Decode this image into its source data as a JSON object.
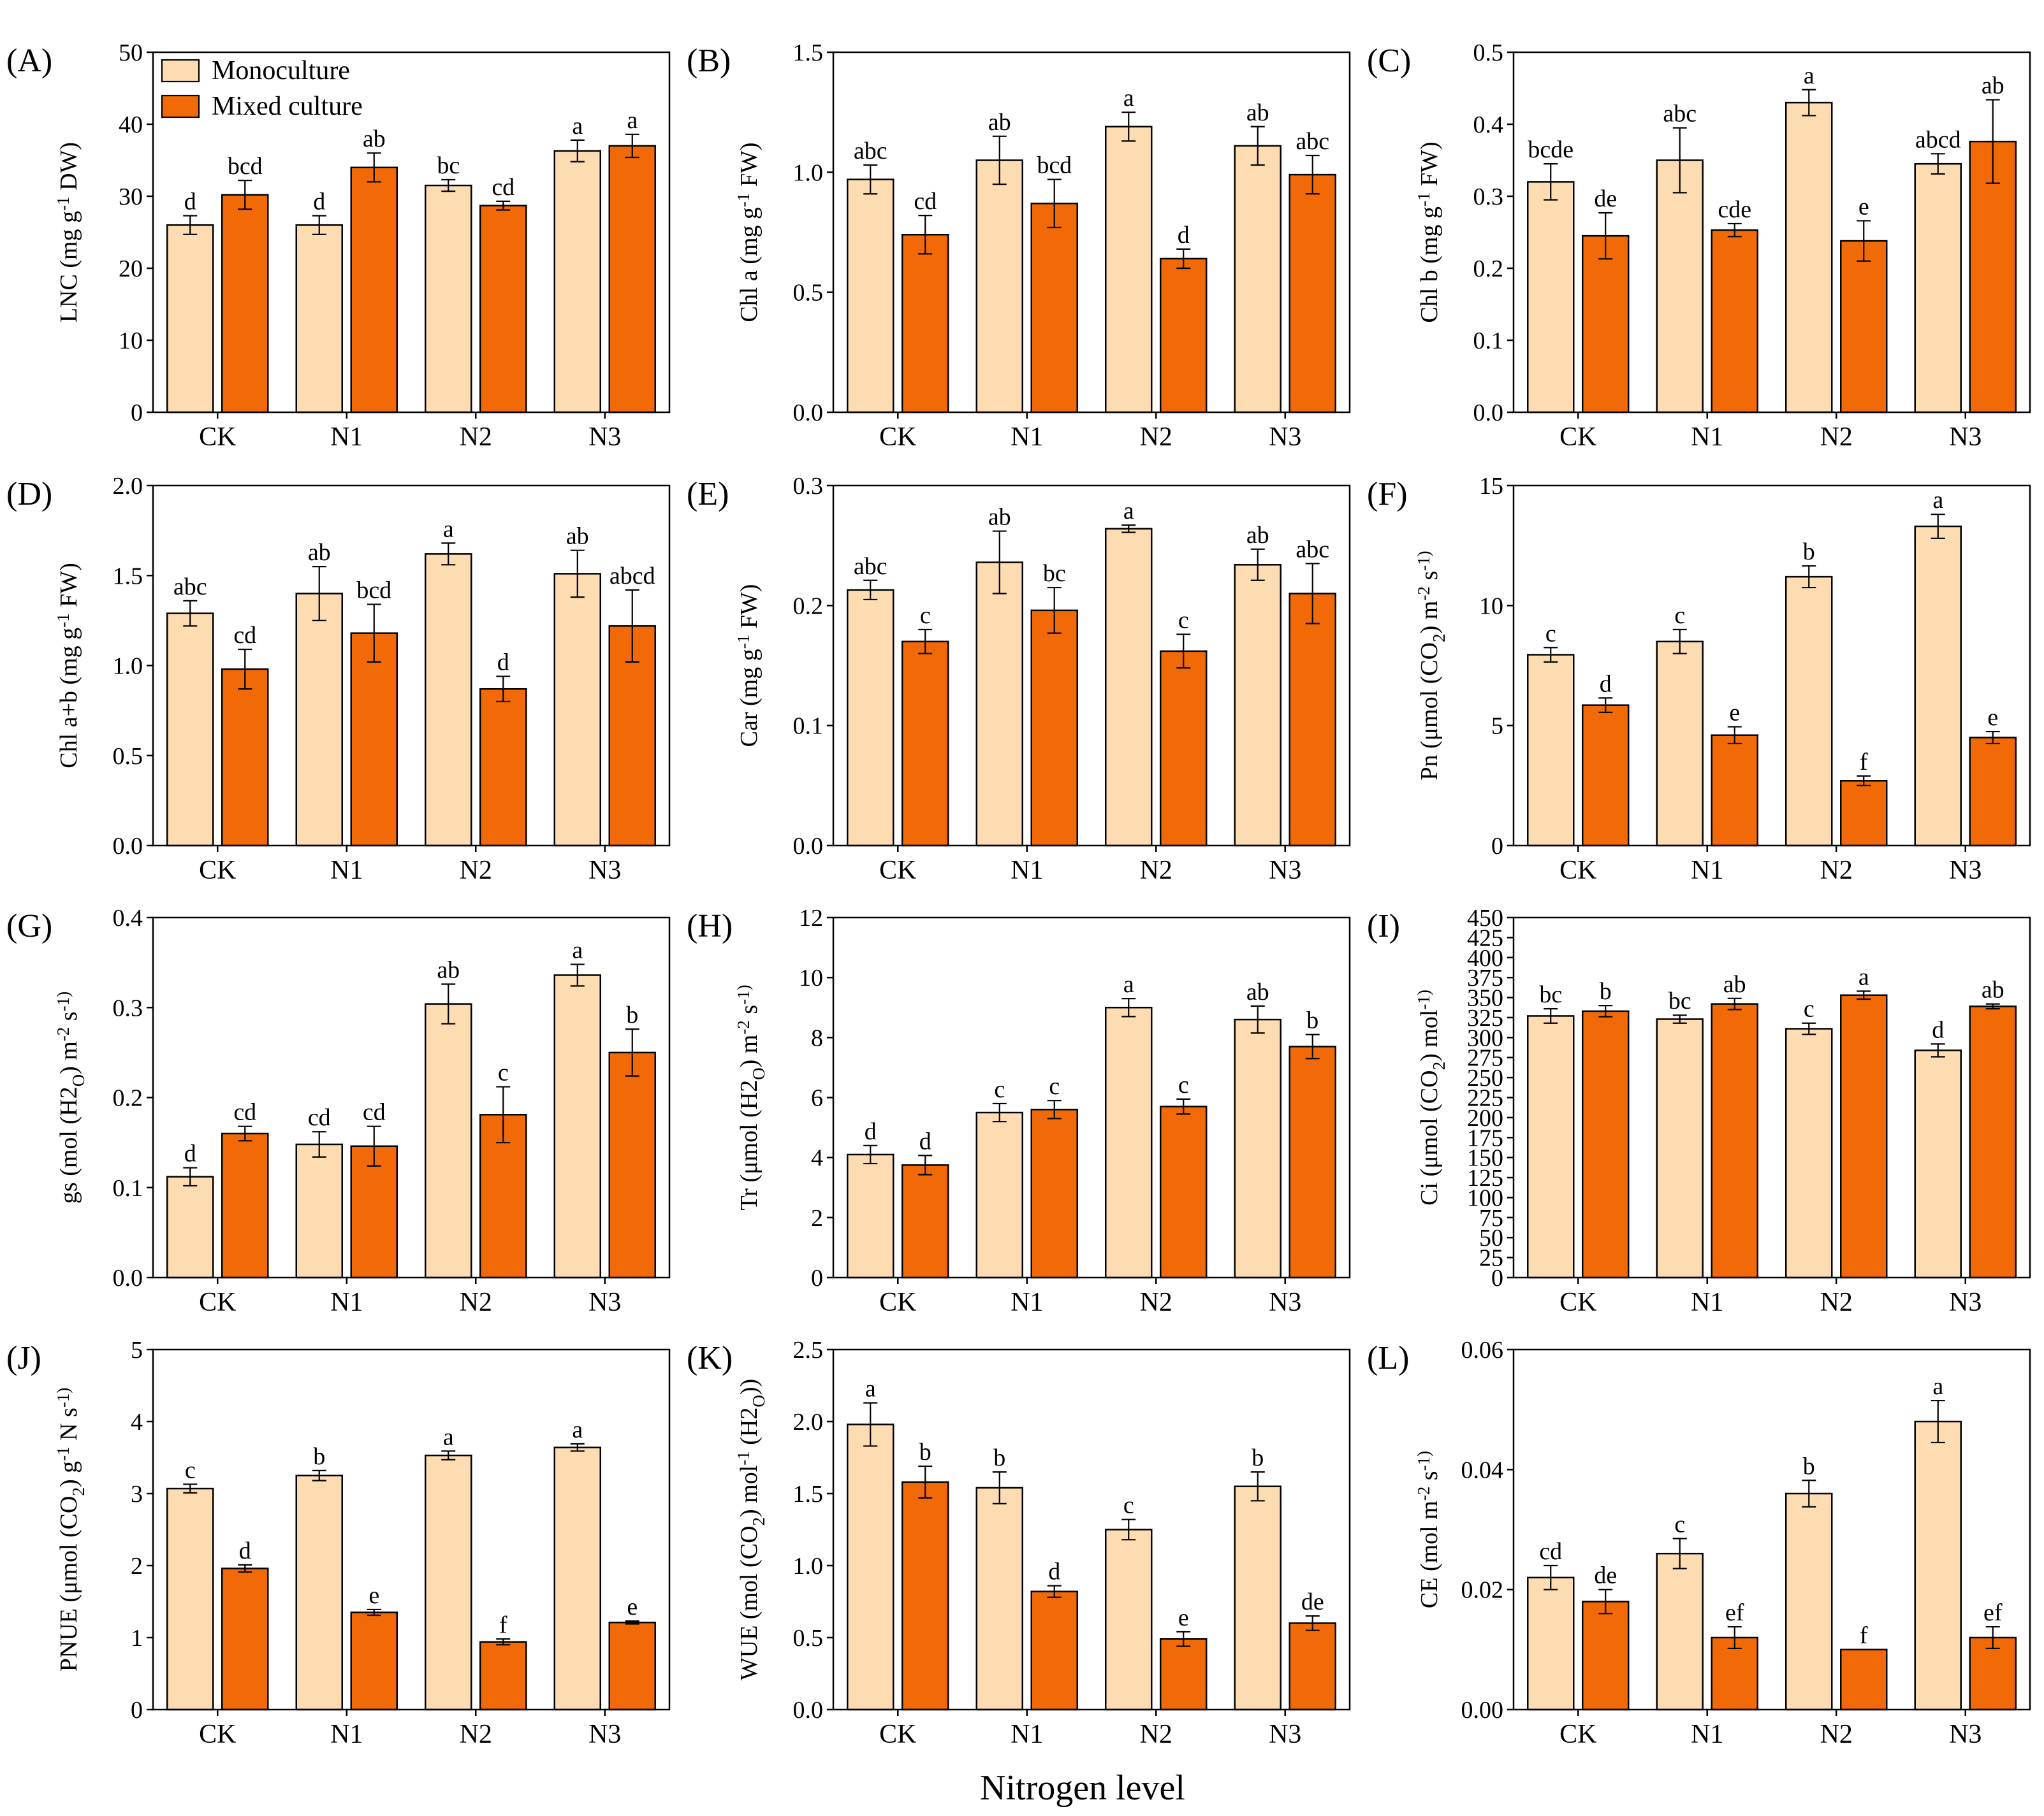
{
  "colors": {
    "monoculture": "#FCDCB0",
    "mixed": "#F26A07",
    "stroke": "#000000"
  },
  "legend": {
    "monoculture": "Monoculture",
    "mixed": "Mixed culture"
  },
  "xlabel": "Nitrogen level",
  "chart_data": [
    {
      "type": "bar",
      "panel": "(A)",
      "ylabel": "LNC (mg g^-1 DW)",
      "ylim": [
        0,
        50
      ],
      "yticks": [
        "0",
        "10",
        "20",
        "30",
        "40",
        "50"
      ],
      "categories": [
        "CK",
        "N1",
        "N2",
        "N3"
      ],
      "series": [
        {
          "name": "Monoculture",
          "values": [
            26,
            26,
            31.5,
            36.3
          ],
          "errors": [
            1.3,
            1.3,
            0.8,
            1.5
          ],
          "letters": [
            "d",
            "d",
            "bc",
            "a"
          ]
        },
        {
          "name": "Mixed culture",
          "values": [
            30.2,
            34,
            28.7,
            37
          ],
          "errors": [
            2,
            2,
            0.6,
            1.6
          ],
          "letters": [
            "bcd",
            "ab",
            "cd",
            "a"
          ]
        }
      ]
    },
    {
      "type": "bar",
      "panel": "(B)",
      "ylabel": "Chl a (mg g^-1 FW)",
      "ylim": [
        0,
        1.5
      ],
      "yticks": [
        "0.0",
        "0.5",
        "1.0",
        "1.5"
      ],
      "categories": [
        "CK",
        "N1",
        "N2",
        "N3"
      ],
      "series": [
        {
          "name": "Monoculture",
          "values": [
            0.97,
            1.05,
            1.19,
            1.11
          ],
          "errors": [
            0.06,
            0.1,
            0.06,
            0.08
          ],
          "letters": [
            "abc",
            "ab",
            "a",
            "ab"
          ]
        },
        {
          "name": "Mixed culture",
          "values": [
            0.74,
            0.87,
            0.64,
            0.99
          ],
          "errors": [
            0.08,
            0.1,
            0.04,
            0.08
          ],
          "letters": [
            "cd",
            "bcd",
            "d",
            "abc"
          ]
        }
      ]
    },
    {
      "type": "bar",
      "panel": "(C)",
      "ylabel": "Chl b (mg g^-1 FW)",
      "ylim": [
        0,
        0.5
      ],
      "yticks": [
        "0.0",
        "0.1",
        "0.2",
        "0.3",
        "0.4",
        "0.5"
      ],
      "categories": [
        "CK",
        "N1",
        "N2",
        "N3"
      ],
      "series": [
        {
          "name": "Monoculture",
          "values": [
            0.32,
            0.35,
            0.43,
            0.345
          ],
          "errors": [
            0.025,
            0.045,
            0.018,
            0.014
          ],
          "letters": [
            "bcde",
            "abc",
            "a",
            "abcd"
          ]
        },
        {
          "name": "Mixed culture",
          "values": [
            0.245,
            0.253,
            0.238,
            0.376
          ],
          "errors": [
            0.032,
            0.009,
            0.028,
            0.058
          ],
          "letters": [
            "de",
            "cde",
            "e",
            "ab"
          ]
        }
      ]
    },
    {
      "type": "bar",
      "panel": "(D)",
      "ylabel": "Chl a+b (mg g^-1 FW)",
      "ylim": [
        0,
        2.0
      ],
      "yticks": [
        "0.0",
        "0.5",
        "1.0",
        "1.5",
        "2.0"
      ],
      "categories": [
        "CK",
        "N1",
        "N2",
        "N3"
      ],
      "series": [
        {
          "name": "Monoculture",
          "values": [
            1.29,
            1.4,
            1.62,
            1.51
          ],
          "errors": [
            0.07,
            0.15,
            0.06,
            0.13
          ],
          "letters": [
            "abc",
            "ab",
            "a",
            "ab"
          ]
        },
        {
          "name": "Mixed culture",
          "values": [
            0.98,
            1.18,
            0.87,
            1.22
          ],
          "errors": [
            0.11,
            0.16,
            0.07,
            0.2
          ],
          "letters": [
            "cd",
            "bcd",
            "d",
            "abcd"
          ]
        }
      ]
    },
    {
      "type": "bar",
      "panel": "(E)",
      "ylabel": "Car (mg g^-1 FW)",
      "ylim": [
        0,
        0.3
      ],
      "yticks": [
        "0.0",
        "0.1",
        "0.2",
        "0.3"
      ],
      "categories": [
        "CK",
        "N1",
        "N2",
        "N3"
      ],
      "series": [
        {
          "name": "Monoculture",
          "values": [
            0.213,
            0.236,
            0.264,
            0.234
          ],
          "errors": [
            0.008,
            0.026,
            0.003,
            0.013
          ],
          "letters": [
            "abc",
            "ab",
            "a",
            "ab"
          ]
        },
        {
          "name": "Mixed culture",
          "values": [
            0.17,
            0.196,
            0.162,
            0.21
          ],
          "errors": [
            0.01,
            0.019,
            0.014,
            0.025
          ],
          "letters": [
            "c",
            "bc",
            "c",
            "abc"
          ]
        }
      ]
    },
    {
      "type": "bar",
      "panel": "(F)",
      "ylabel": "Pn (μmol (CO2) m^-2 s^-1)",
      "ylim": [
        0,
        15
      ],
      "yticks": [
        "0",
        "5",
        "10",
        "15"
      ],
      "categories": [
        "CK",
        "N1",
        "N2",
        "N3"
      ],
      "series": [
        {
          "name": "Monoculture",
          "values": [
            7.95,
            8.5,
            11.2,
            13.3
          ],
          "errors": [
            0.3,
            0.5,
            0.45,
            0.5
          ],
          "letters": [
            "c",
            "c",
            "b",
            "a"
          ]
        },
        {
          "name": "Mixed culture",
          "values": [
            5.85,
            4.6,
            2.7,
            4.5
          ],
          "errors": [
            0.3,
            0.35,
            0.2,
            0.25
          ],
          "letters": [
            "d",
            "e",
            "f",
            "e"
          ]
        }
      ]
    },
    {
      "type": "bar",
      "panel": "(G)",
      "ylabel": "gs (mol (H2O) m^-2 s^-1)",
      "ylim": [
        0,
        0.4
      ],
      "yticks": [
        "0.0",
        "0.1",
        "0.2",
        "0.3",
        "0.4"
      ],
      "categories": [
        "CK",
        "N1",
        "N2",
        "N3"
      ],
      "series": [
        {
          "name": "Monoculture",
          "values": [
            0.112,
            0.148,
            0.304,
            0.336
          ],
          "errors": [
            0.01,
            0.014,
            0.022,
            0.012
          ],
          "letters": [
            "d",
            "cd",
            "ab",
            "a"
          ]
        },
        {
          "name": "Mixed culture",
          "values": [
            0.16,
            0.146,
            0.181,
            0.25
          ],
          "errors": [
            0.008,
            0.022,
            0.031,
            0.026
          ],
          "letters": [
            "cd",
            "cd",
            "c",
            "b"
          ]
        }
      ]
    },
    {
      "type": "bar",
      "panel": "(H)",
      "ylabel": "Tr (μmol (H2O) m^-2 s^-1)",
      "ylim": [
        0,
        12
      ],
      "yticks": [
        "0",
        "2",
        "4",
        "6",
        "8",
        "10",
        "12"
      ],
      "categories": [
        "CK",
        "N1",
        "N2",
        "N3"
      ],
      "series": [
        {
          "name": "Monoculture",
          "values": [
            4.1,
            5.5,
            9.0,
            8.6
          ],
          "errors": [
            0.3,
            0.3,
            0.3,
            0.45
          ],
          "letters": [
            "d",
            "c",
            "a",
            "ab"
          ]
        },
        {
          "name": "Mixed culture",
          "values": [
            3.75,
            5.6,
            5.7,
            7.7
          ],
          "errors": [
            0.32,
            0.3,
            0.25,
            0.4
          ],
          "letters": [
            "d",
            "c",
            "c",
            "b"
          ]
        }
      ]
    },
    {
      "type": "bar",
      "panel": "(I)",
      "ylabel": "Ci (μmol (CO2) mol^-1)",
      "ylim": [
        0,
        450
      ],
      "yticks": [
        "0",
        "25",
        "50",
        "75",
        "100",
        "125",
        "150",
        "175",
        "200",
        "225",
        "250",
        "275",
        "300",
        "325",
        "350",
        "375",
        "400",
        "425",
        "450"
      ],
      "categories": [
        "CK",
        "N1",
        "N2",
        "N3"
      ],
      "series": [
        {
          "name": "Monoculture",
          "values": [
            327,
            323,
            311,
            284
          ],
          "errors": [
            9,
            5,
            7,
            8
          ],
          "letters": [
            "bc",
            "bc",
            "c",
            "d"
          ]
        },
        {
          "name": "Mixed culture",
          "values": [
            333,
            342,
            353,
            339
          ],
          "errors": [
            7,
            7,
            5,
            3
          ],
          "letters": [
            "b",
            "ab",
            "a",
            "ab"
          ]
        }
      ]
    },
    {
      "type": "bar",
      "panel": "(J)",
      "ylabel": "PNUE (μmol (CO2) g^-1 N s^-1)",
      "ylim": [
        0,
        5
      ],
      "yticks": [
        "0",
        "1",
        "2",
        "3",
        "4",
        "5"
      ],
      "categories": [
        "CK",
        "N1",
        "N2",
        "N3"
      ],
      "series": [
        {
          "name": "Monoculture",
          "values": [
            3.07,
            3.25,
            3.53,
            3.64
          ],
          "errors": [
            0.06,
            0.07,
            0.06,
            0.05
          ],
          "letters": [
            "c",
            "b",
            "a",
            "a"
          ]
        },
        {
          "name": "Mixed culture",
          "values": [
            1.96,
            1.35,
            0.94,
            1.21
          ],
          "errors": [
            0.05,
            0.04,
            0.04,
            0.02
          ],
          "letters": [
            "d",
            "e",
            "f",
            "e"
          ]
        }
      ]
    },
    {
      "type": "bar",
      "panel": "(K)",
      "ylabel": "WUE (mol (CO2) mol^-1 (H2O))",
      "ylim": [
        0,
        2.5
      ],
      "yticks": [
        "0.0",
        "0.5",
        "1.0",
        "1.5",
        "2.0",
        "2.5"
      ],
      "categories": [
        "CK",
        "N1",
        "N2",
        "N3"
      ],
      "series": [
        {
          "name": "Monoculture",
          "values": [
            1.98,
            1.54,
            1.25,
            1.55
          ],
          "errors": [
            0.15,
            0.11,
            0.07,
            0.1
          ],
          "letters": [
            "a",
            "b",
            "c",
            "b"
          ]
        },
        {
          "name": "Mixed culture",
          "values": [
            1.58,
            0.82,
            0.49,
            0.6
          ],
          "errors": [
            0.11,
            0.04,
            0.05,
            0.05
          ],
          "letters": [
            "b",
            "d",
            "e",
            "de"
          ]
        }
      ]
    },
    {
      "type": "bar",
      "panel": "(L)",
      "ylabel": "CE (mol m^-2 s^-1)",
      "ylim": [
        0,
        0.06
      ],
      "yticks": [
        "0.00",
        "0.02",
        "0.04",
        "0.06"
      ],
      "categories": [
        "CK",
        "N1",
        "N2",
        "N3"
      ],
      "series": [
        {
          "name": "Monoculture",
          "values": [
            0.022,
            0.026,
            0.036,
            0.048
          ],
          "errors": [
            0.002,
            0.0025,
            0.0022,
            0.0035
          ],
          "letters": [
            "cd",
            "c",
            "b",
            "a"
          ]
        },
        {
          "name": "Mixed culture",
          "values": [
            0.018,
            0.012,
            0.01,
            0.012
          ],
          "errors": [
            0.002,
            0.0018,
            0,
            0.0018
          ],
          "letters": [
            "de",
            "ef",
            "f",
            "ef"
          ]
        }
      ]
    }
  ]
}
